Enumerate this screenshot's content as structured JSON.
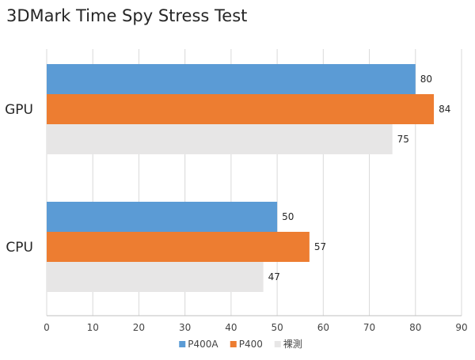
{
  "chart_data": {
    "type": "bar",
    "orientation": "horizontal",
    "title": "3DMark Time Spy Stress Test",
    "categories": [
      "GPU",
      "CPU"
    ],
    "series": [
      {
        "name": "P400A",
        "values": [
          80,
          50
        ],
        "color": "#5b9bd5"
      },
      {
        "name": "P400",
        "values": [
          84,
          57
        ],
        "color": "#ed7d31"
      },
      {
        "name": "裸測",
        "values": [
          75,
          47
        ],
        "color": "#e7e6e6"
      }
    ],
    "xlim": [
      0,
      90
    ],
    "xticks": [
      0,
      10,
      20,
      30,
      40,
      50,
      60,
      70,
      80,
      90
    ],
    "grid": true,
    "legend": "bottom",
    "data_labels": true
  }
}
